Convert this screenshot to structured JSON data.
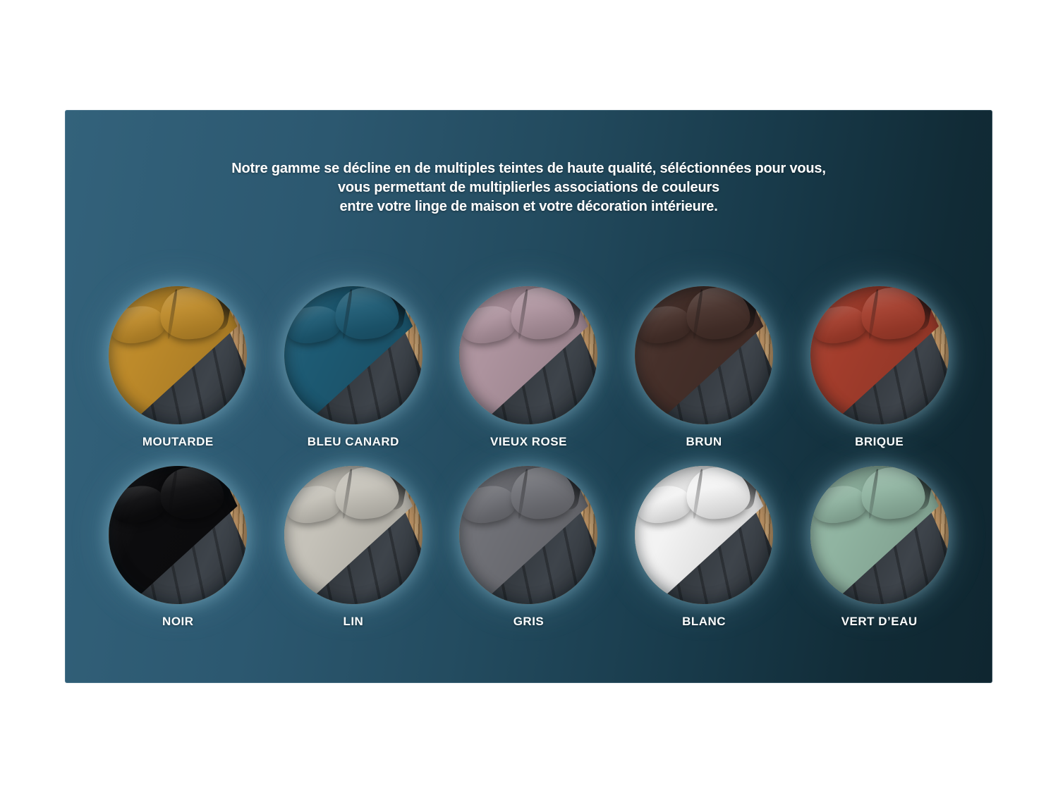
{
  "panel": {
    "intro_lines": [
      "Notre gamme se décline en de multiples teintes de haute qualité, séléctionnées pour vous,",
      "vous permettant de multiplierles associations de couleurs",
      "entre votre linge de maison et votre décoration intérieure."
    ],
    "background_gradient": [
      "#33627b",
      "#0f2630"
    ],
    "text_color": "#ffffff",
    "glow_color": "rgba(151,205,227,0.42)"
  },
  "scene": {
    "bed_frame_color": "#2e3338",
    "wood_color": "#b48c60"
  },
  "swatches": [
    {
      "label": "MOUTARDE",
      "color": "#bd8a2a"
    },
    {
      "label": "BLEU CANARD",
      "color": "#1d5a73"
    },
    {
      "label": "VIEUX ROSE",
      "color": "#ad939e"
    },
    {
      "label": "BRUN",
      "color": "#46302a"
    },
    {
      "label": "BRIQUE",
      "color": "#a33d2c"
    },
    {
      "label": "NOIR",
      "color": "#0c0c0e"
    },
    {
      "label": "LIN",
      "color": "#c5c2b9"
    },
    {
      "label": "GRIS",
      "color": "#6f7076"
    },
    {
      "label": "BLANC",
      "color": "#f3f3f3"
    },
    {
      "label": "VERT D’EAU",
      "color": "#90b4a1"
    }
  ]
}
